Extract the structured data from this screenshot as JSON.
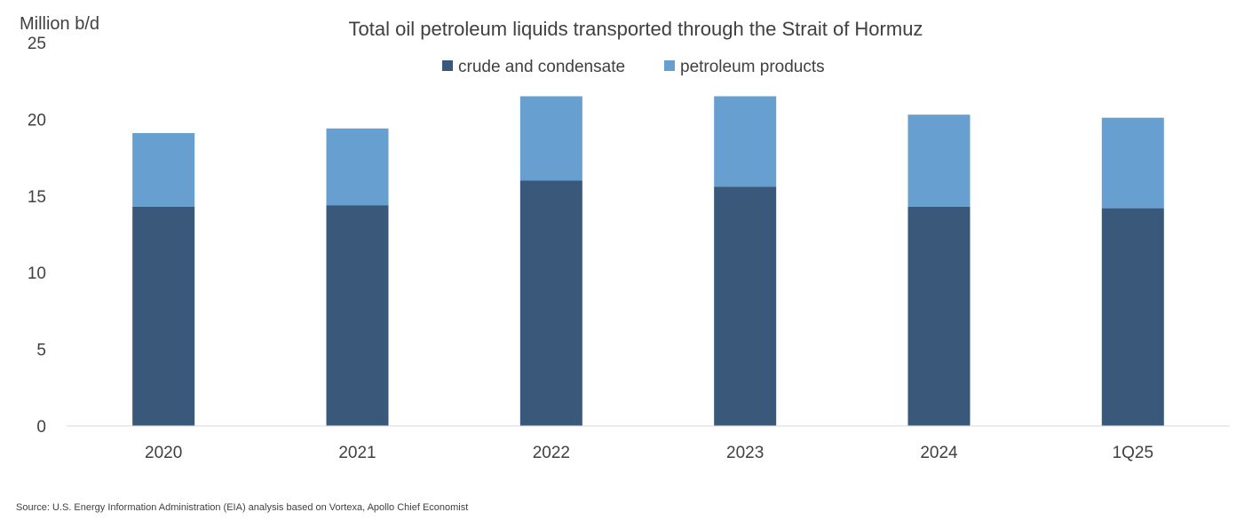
{
  "chart_data": {
    "type": "bar",
    "stacked": true,
    "title": "Total oil petroleum liquids transported through the Strait of Hormuz",
    "unit_label": "Million b/d",
    "categories": [
      "2020",
      "2021",
      "2022",
      "2023",
      "2024",
      "1Q25"
    ],
    "series": [
      {
        "name": "crude and condensate",
        "color": "#3a5879",
        "values": [
          14.3,
          14.4,
          16.0,
          15.6,
          14.3,
          14.2
        ]
      },
      {
        "name": "petroleum products",
        "color": "#679fd0",
        "values": [
          4.8,
          5.0,
          5.5,
          5.9,
          6.0,
          5.9
        ]
      }
    ],
    "ylim": [
      0,
      25
    ],
    "yticks": [
      "0",
      "5",
      "10",
      "15",
      "20",
      "25"
    ],
    "ytick_values": [
      0,
      5,
      10,
      15,
      20,
      25
    ],
    "grid": false,
    "legend_position": "top-center"
  },
  "source": "Source: U.S. Energy Information Administration (EIA) analysis based on Vortexa, Apollo Chief Economist"
}
